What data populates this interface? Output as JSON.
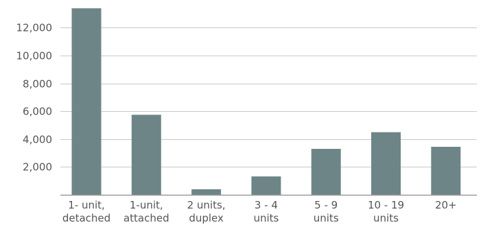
{
  "chart_data": {
    "type": "bar",
    "title": "",
    "xlabel": "",
    "ylabel": "",
    "categories": [
      [
        "1- unit,",
        "detached"
      ],
      [
        "1-unit,",
        "attached"
      ],
      [
        "2 units,",
        "duplex"
      ],
      [
        "3 - 4",
        "units"
      ],
      [
        "5 - 9",
        "units"
      ],
      [
        "10 - 19",
        "units"
      ],
      [
        "20+"
      ]
    ],
    "values": [
      13400,
      5750,
      400,
      1320,
      3300,
      4500,
      3450
    ],
    "ylim": [
      0,
      13600
    ],
    "yticks": [
      2000,
      4000,
      6000,
      8000,
      10000,
      12000
    ],
    "ytick_labels": [
      "2,000",
      "4,000",
      "6,000",
      "8,000",
      "10,000",
      "12,000"
    ],
    "grid": true,
    "legend": "none",
    "colors": {
      "bar": "#6e8587"
    }
  }
}
